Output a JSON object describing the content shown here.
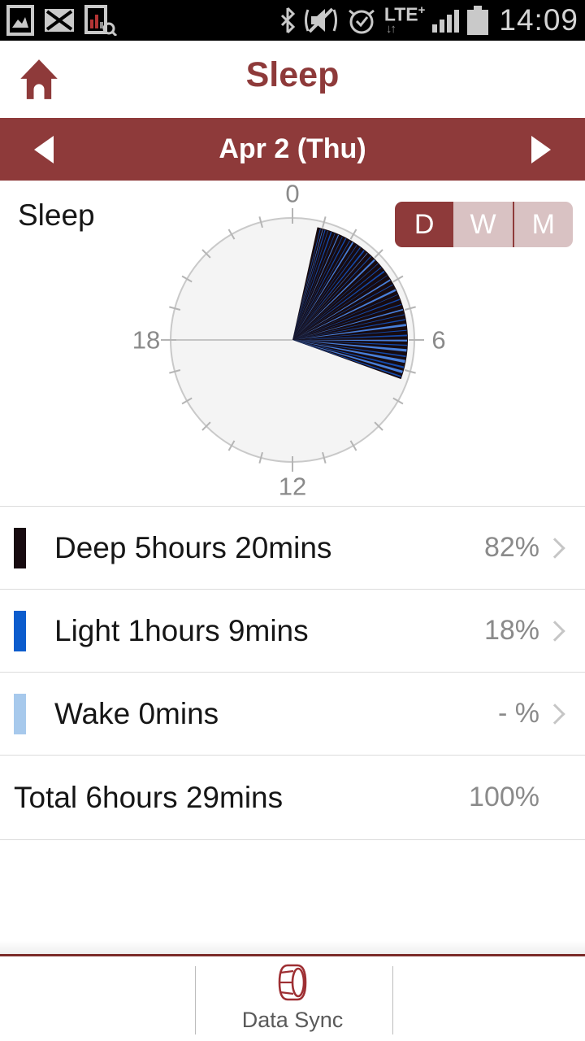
{
  "status_bar": {
    "time": "14:09",
    "lte_label": "LTE",
    "lte_plus": "+",
    "lte_arrows": "↓↑",
    "left_icons": [
      "screenshot",
      "message-failed",
      "data-search"
    ],
    "right_icons": [
      "bluetooth",
      "mute-vibrate",
      "alarm",
      "lte-plus",
      "signal",
      "battery"
    ]
  },
  "header": {
    "title": "Sleep"
  },
  "date_nav": {
    "date_label": "Apr 2 (Thu)"
  },
  "sleep_section": {
    "label": "Sleep",
    "toggle": [
      {
        "label": "D",
        "selected": true
      },
      {
        "label": "W",
        "selected": false
      },
      {
        "label": "M",
        "selected": false
      }
    ]
  },
  "chart_data": {
    "type": "polar-sleep-clock",
    "hours_total": 24,
    "tick_label_hours": [
      0,
      6,
      12,
      18
    ],
    "sleep_start_hour": 0.83,
    "sleep_end_hour": 7.32,
    "base_stage": "deep",
    "stages": {
      "deep_minutes": 320,
      "light_minutes": 69,
      "wake_minutes": 0,
      "total_minutes": 389
    },
    "light_streaks": [
      [
        0.94,
        0.025,
        0
      ],
      [
        1.02,
        0.02,
        1
      ],
      [
        1.1,
        0.03,
        0
      ],
      [
        1.2,
        0.02,
        0
      ],
      [
        1.32,
        0.04,
        0
      ],
      [
        1.45,
        0.02,
        0
      ],
      [
        1.58,
        0.03,
        1
      ],
      [
        1.72,
        0.02,
        0
      ],
      [
        1.85,
        0.04,
        0
      ],
      [
        2.0,
        0.025,
        0
      ],
      [
        2.12,
        0.05,
        1
      ],
      [
        2.28,
        0.02,
        0
      ],
      [
        2.42,
        0.03,
        0
      ],
      [
        2.58,
        0.05,
        0
      ],
      [
        2.72,
        0.02,
        1
      ],
      [
        2.88,
        0.03,
        0
      ],
      [
        3.05,
        0.06,
        1
      ],
      [
        3.22,
        0.02,
        0
      ],
      [
        3.38,
        0.03,
        0
      ],
      [
        3.55,
        0.05,
        0
      ],
      [
        3.72,
        0.02,
        0
      ],
      [
        3.9,
        0.05,
        1
      ],
      [
        4.08,
        0.03,
        0
      ],
      [
        4.28,
        0.07,
        1
      ],
      [
        4.45,
        0.02,
        0
      ],
      [
        4.62,
        0.04,
        0
      ],
      [
        4.8,
        0.03,
        0
      ],
      [
        4.98,
        0.05,
        1
      ],
      [
        5.15,
        0.03,
        0
      ],
      [
        5.32,
        0.04,
        0
      ],
      [
        5.5,
        0.08,
        1
      ],
      [
        5.68,
        0.03,
        0
      ],
      [
        5.85,
        0.05,
        0
      ],
      [
        6.02,
        0.06,
        1
      ],
      [
        6.18,
        0.04,
        0
      ],
      [
        6.35,
        0.09,
        1
      ],
      [
        6.55,
        0.05,
        0
      ],
      [
        6.72,
        0.1,
        1
      ],
      [
        6.92,
        0.06,
        0
      ],
      [
        7.08,
        0.09,
        1
      ],
      [
        7.24,
        0.05,
        0
      ]
    ]
  },
  "legend": {
    "rows": [
      {
        "stage": "deep",
        "label": "Deep 5hours 20mins",
        "percent": "82%",
        "color": "#170b10"
      },
      {
        "stage": "light",
        "label": "Light 1hours 9mins",
        "percent": "18%",
        "color": "#0c5ccd"
      },
      {
        "stage": "wake",
        "label": "Wake 0mins",
        "percent": "- %",
        "color": "#a7c9ec"
      }
    ],
    "total": {
      "label": "Total 6hours 29mins",
      "percent": "100%"
    }
  },
  "footer": {
    "sync_label": "Data Sync"
  },
  "colors": {
    "accent": "#8e3a3a",
    "accent_dark": "#7b2b29",
    "toggle_inactive": "#d9c2c3",
    "deep": "#170b10",
    "light": "#1456c8",
    "light_bright": "#4b86e6",
    "wake": "#a7c9ec",
    "circle_fill": "#f4f4f4",
    "circle_stroke": "#c9c9c9",
    "tick": "#b5b5b5",
    "muted_text": "#8a8a8a"
  }
}
